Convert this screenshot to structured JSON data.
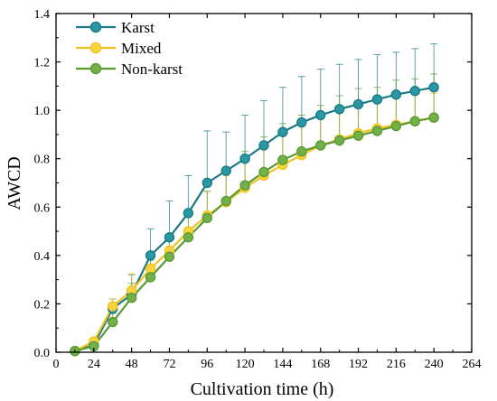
{
  "chart_data": {
    "type": "line",
    "title": "",
    "xlabel": "Cultivation time (h)",
    "ylabel": "AWCD",
    "xlim": [
      0,
      264
    ],
    "ylim": [
      0,
      1.4
    ],
    "xticks": [
      0,
      24,
      48,
      72,
      96,
      120,
      144,
      168,
      192,
      216,
      240,
      264
    ],
    "yticks": [
      0.0,
      0.2,
      0.4,
      0.6,
      0.8,
      1.0,
      1.2,
      1.4
    ],
    "ytick_labels": [
      "0.0",
      "0.2",
      "0.4",
      "0.6",
      "0.8",
      "1.0",
      "1.2",
      "1.4"
    ],
    "x": [
      12,
      24,
      36,
      48,
      60,
      72,
      84,
      96,
      108,
      120,
      132,
      144,
      156,
      168,
      180,
      192,
      204,
      216,
      228,
      240
    ],
    "legend_position": "top-left",
    "error_bars": true,
    "series": [
      {
        "name": "Karst",
        "color": "#1b7a86",
        "marker_fill": "#2a98a4",
        "values": [
          0.005,
          0.03,
          0.18,
          0.24,
          0.4,
          0.475,
          0.575,
          0.7,
          0.75,
          0.8,
          0.855,
          0.91,
          0.95,
          0.98,
          1.005,
          1.025,
          1.045,
          1.065,
          1.08,
          1.095
        ],
        "errors": [
          0.005,
          0.01,
          0.04,
          0.08,
          0.11,
          0.15,
          0.155,
          0.215,
          0.16,
          0.18,
          0.185,
          0.185,
          0.19,
          0.19,
          0.185,
          0.185,
          0.185,
          0.175,
          0.175,
          0.18
        ]
      },
      {
        "name": "Mixed",
        "color": "#f2c320",
        "marker_fill": "#f7d340",
        "values": [
          0.005,
          0.045,
          0.19,
          0.255,
          0.345,
          0.42,
          0.5,
          0.565,
          0.62,
          0.68,
          0.73,
          0.775,
          0.815,
          0.855,
          0.88,
          0.905,
          0.925,
          0.94,
          0.955,
          0.97
        ],
        "errors": [
          0.005,
          0.01,
          0.03,
          0.07,
          0.06,
          0.07,
          0.09,
          0.1,
          0.11,
          0.115,
          0.115,
          0.12,
          0.12,
          0.125,
          0.12,
          0.12,
          0.115,
          0.12,
          0.115,
          0.1
        ]
      },
      {
        "name": "Non-karst",
        "color": "#5a9a34",
        "marker_fill": "#73b048",
        "values": [
          0.005,
          0.025,
          0.125,
          0.225,
          0.31,
          0.395,
          0.475,
          0.555,
          0.625,
          0.69,
          0.745,
          0.795,
          0.83,
          0.855,
          0.875,
          0.895,
          0.915,
          0.935,
          0.955,
          0.97
        ],
        "errors": [
          0.005,
          0.01,
          0.035,
          0.06,
          0.07,
          0.085,
          0.1,
          0.11,
          0.13,
          0.14,
          0.145,
          0.15,
          0.15,
          0.165,
          0.185,
          0.195,
          0.18,
          0.19,
          0.175,
          0.18
        ]
      }
    ]
  }
}
